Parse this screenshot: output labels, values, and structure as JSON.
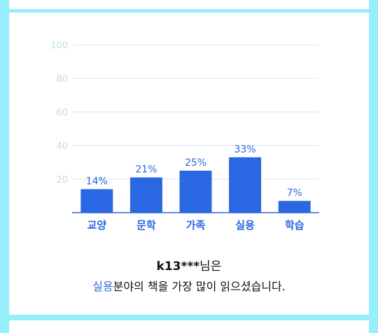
{
  "chart_data": {
    "type": "bar",
    "categories": [
      "교양",
      "문학",
      "가족",
      "실용",
      "학습"
    ],
    "values": [
      14,
      21,
      25,
      33,
      7
    ],
    "value_labels": [
      "14%",
      "21%",
      "25%",
      "33%",
      "7%"
    ],
    "title": "",
    "xlabel": "",
    "ylabel": "",
    "ylim": [
      0,
      100
    ],
    "y_ticks": [
      20,
      40,
      60,
      80,
      100
    ],
    "grid": true,
    "bar_color": "#2a67e2",
    "label_color": "#2a67e2",
    "grid_color": "#dde6ee",
    "tick_color": "#c2dce9"
  },
  "summary": {
    "user_id": "k13***",
    "user_suffix": "님은",
    "genre": "실용",
    "genre_suffix": "분야의 책을 가장 많이 읽으셨습니다."
  }
}
